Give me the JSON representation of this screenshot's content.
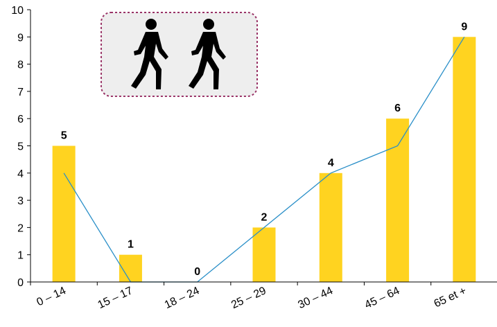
{
  "chart_data": {
    "type": "bar",
    "categories": [
      "0 – 14",
      "15 – 17",
      "18 – 24",
      "25 – 29",
      "30 – 44",
      "45 – 64",
      "65 et +"
    ],
    "series": [
      {
        "type": "bar",
        "values": [
          5,
          1,
          0,
          2,
          4,
          6,
          9
        ],
        "color": "#FFD320"
      },
      {
        "type": "line",
        "values": [
          4,
          0,
          0,
          2,
          4,
          5,
          9
        ],
        "color": "#2A8FC8"
      }
    ],
    "data_labels": [
      "5",
      "1",
      "0",
      "2",
      "4",
      "6",
      "9"
    ],
    "ylim": [
      0,
      10
    ],
    "yticks": [
      0,
      1,
      2,
      3,
      4,
      5,
      6,
      7,
      8,
      9,
      10
    ],
    "grid": false,
    "legend": "none"
  },
  "badge": {
    "icon": "pedestrian-icon",
    "border_color": "#993366",
    "fill_color": "#EEEEEE"
  }
}
